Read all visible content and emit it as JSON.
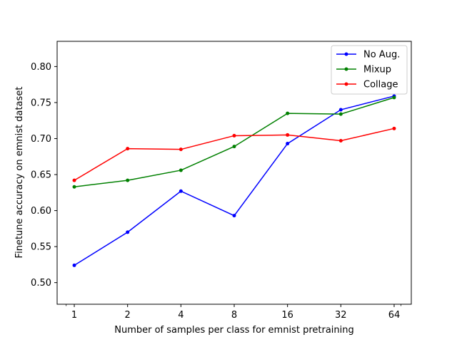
{
  "chart_data": {
    "type": "line",
    "x": [
      1,
      2,
      4,
      8,
      16,
      32,
      64
    ],
    "x_tick_labels": [
      "1",
      "2",
      "4",
      "8",
      "16",
      "32",
      "64"
    ],
    "xscale": "log2",
    "xlim": [
      0.8,
      80
    ],
    "ylim": [
      0.47,
      0.835
    ],
    "y_ticks": [
      0.5,
      0.55,
      0.6,
      0.65,
      0.7,
      0.75,
      0.8
    ],
    "y_tick_labels": [
      "0.50",
      "0.55",
      "0.60",
      "0.65",
      "0.70",
      "0.75",
      "0.80"
    ],
    "xlabel": "Number of samples per class for emnist pretraining",
    "ylabel": "Finetune accuracy on emnist dataset",
    "grid": false,
    "legend_position": "top-right",
    "series": [
      {
        "name": "No Aug.",
        "color": "#0000ff",
        "values": [
          0.524,
          0.57,
          0.627,
          0.593,
          0.693,
          0.74,
          0.759
        ]
      },
      {
        "name": "Mixup",
        "color": "#008000",
        "values": [
          0.633,
          0.642,
          0.656,
          0.689,
          0.735,
          0.734,
          0.757
        ]
      },
      {
        "name": "Collage",
        "color": "#ff0000",
        "values": [
          0.642,
          0.686,
          0.685,
          0.704,
          0.705,
          0.697,
          0.714
        ]
      }
    ]
  }
}
